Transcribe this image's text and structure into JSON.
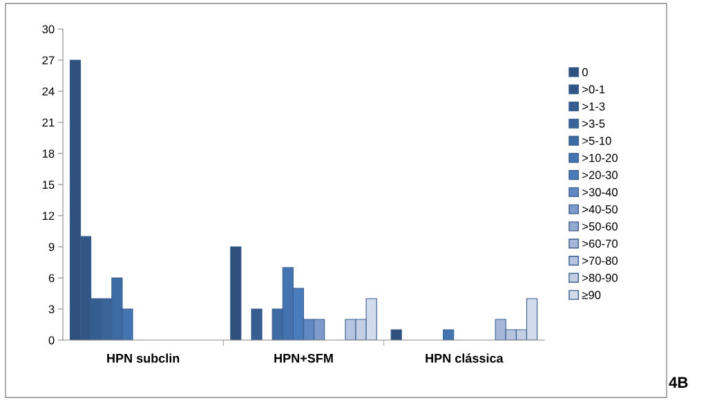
{
  "chart_data": {
    "type": "bar",
    "categories": [
      "HPN subclin",
      "HPN+SFM",
      "HPN clássica"
    ],
    "series": [
      {
        "name": "0",
        "color": "#2f4f7c",
        "values": [
          27,
          9,
          1
        ]
      },
      {
        "name": ">0-1",
        "color": "#325685",
        "values": [
          10,
          0,
          0
        ]
      },
      {
        "name": ">1-3",
        "color": "#365d8f",
        "values": [
          4,
          3,
          0
        ]
      },
      {
        "name": ">3-5",
        "color": "#3a6498",
        "values": [
          4,
          0,
          0
        ]
      },
      {
        "name": ">5-10",
        "color": "#3e6ba3",
        "values": [
          6,
          3,
          0
        ]
      },
      {
        "name": ">10-20",
        "color": "#4474b0",
        "values": [
          3,
          7,
          1
        ]
      },
      {
        "name": ">20-30",
        "color": "#4a7cbb",
        "values": [
          0,
          5,
          0
        ]
      },
      {
        "name": ">30-40",
        "color": "#6089c4",
        "values": [
          0,
          2,
          0
        ]
      },
      {
        "name": ">40-50",
        "color": "#7e9acb",
        "values": [
          0,
          2,
          0
        ]
      },
      {
        "name": ">50-60",
        "color": "#93a9d2",
        "values": [
          0,
          0,
          0
        ]
      },
      {
        "name": ">60-70",
        "color": "#a6b8da",
        "values": [
          0,
          0,
          2
        ]
      },
      {
        "name": ">70-80",
        "color": "#b6c4e0",
        "values": [
          0,
          2,
          1
        ]
      },
      {
        "name": ">80-90",
        "color": "#c4cfe5",
        "values": [
          0,
          2,
          1
        ]
      },
      {
        "name": "≥90",
        "color": "#d2dbeb",
        "values": [
          0,
          4,
          4
        ]
      }
    ],
    "ylim": [
      0,
      30
    ],
    "yticks": [
      0,
      3,
      6,
      9,
      12,
      15,
      18,
      21,
      24,
      27,
      30
    ],
    "grid": false,
    "legend": "right",
    "annotations": [
      "4B"
    ]
  }
}
